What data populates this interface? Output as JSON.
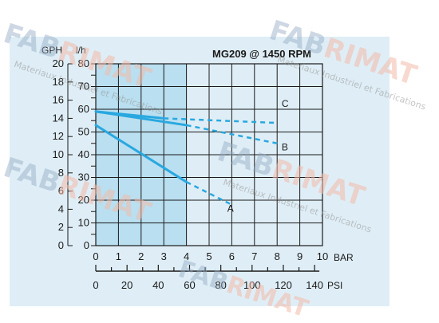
{
  "watermark": {
    "word_a": "FAB",
    "word_b": "RIMAT",
    "sub": "Materiaux Industriel et Fabrications",
    "color_a": "#93a9c3",
    "color_b": "#f2b9a8"
  },
  "chart_data": {
    "type": "line",
    "title": "MG209 @ 1450 RPM",
    "y_left_label": "GPH",
    "y_right_label": "l/h",
    "x_top_unit": "BAR",
    "x_bottom_unit": "PSI",
    "x_bar_ticks": [
      "0",
      "1",
      "2",
      "3",
      "4",
      "5",
      "6",
      "7",
      "8",
      "9",
      "10"
    ],
    "x_psi_ticks": [
      "0",
      "20",
      "40",
      "60",
      "80",
      "100",
      "120",
      "140"
    ],
    "y_lh_ticks": [
      "0",
      "10",
      "20",
      "30",
      "40",
      "50",
      "60",
      "70",
      "80"
    ],
    "y_gph_ticks": [
      "0",
      "2",
      "4",
      "6",
      "8",
      "10",
      "12",
      "14",
      "16",
      "18",
      "20"
    ],
    "xlim": [
      0,
      10
    ],
    "ylim": [
      0,
      80
    ],
    "shaded_region": {
      "x": [
        0,
        4
      ],
      "color": "#b9dff0"
    },
    "grid": true,
    "line_color": "#29a8e0",
    "series": [
      {
        "name": "A",
        "solid": [
          [
            0,
            53
          ],
          [
            4,
            28
          ]
        ],
        "dashed": [
          [
            4,
            28
          ],
          [
            6,
            18
          ]
        ],
        "label_at": [
          5.8,
          15
        ]
      },
      {
        "name": "B",
        "solid": [
          [
            0,
            59
          ],
          [
            4,
            53
          ]
        ],
        "dashed": [
          [
            4,
            53
          ],
          [
            8,
            45
          ]
        ],
        "label_at": [
          8.2,
          42
        ]
      },
      {
        "name": "C",
        "solid": [
          [
            0,
            59
          ],
          [
            3,
            56
          ]
        ],
        "dashed": [
          [
            3,
            56
          ],
          [
            8,
            54
          ]
        ],
        "label_at": [
          8.2,
          61
        ]
      }
    ]
  }
}
